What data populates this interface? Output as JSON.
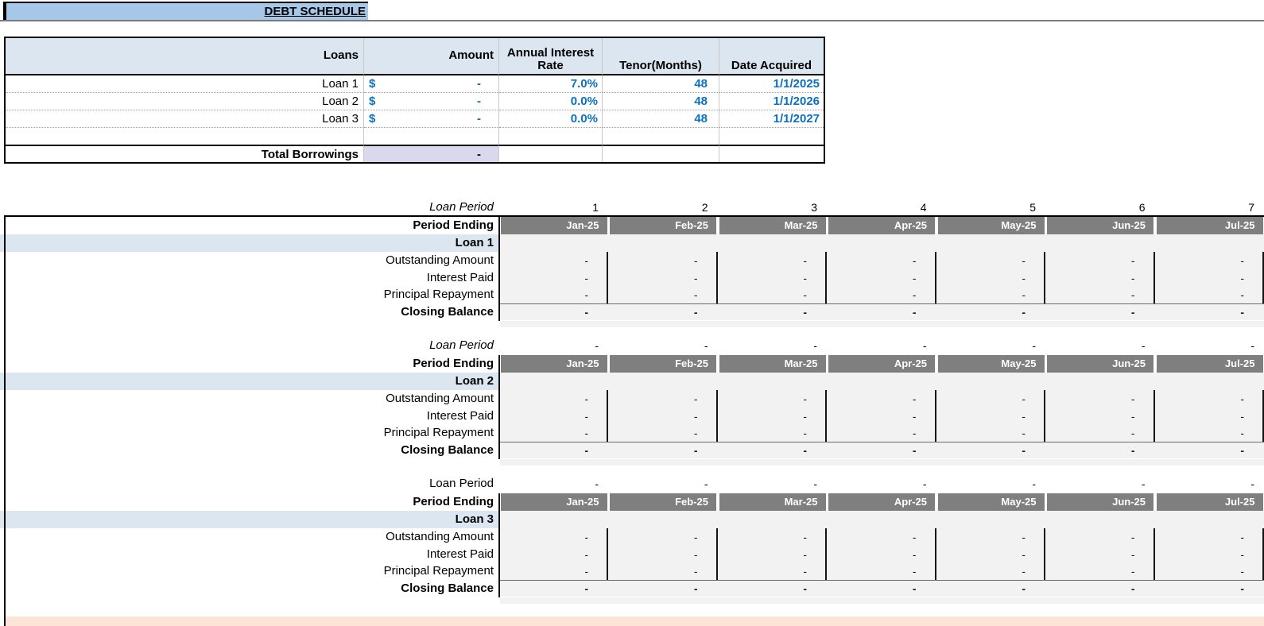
{
  "title": {
    "text": "DEBT SCHEDULE"
  },
  "loans_table": {
    "headers": {
      "loans": "Loans",
      "amount": "Amount",
      "rate_line1": "Annual Interest",
      "rate_line2": "Rate",
      "tenor": "Tenor(Months)",
      "date": "Date Acquired"
    },
    "rows": [
      {
        "name": "Loan 1",
        "currency": "$",
        "amount": "-",
        "rate": "7.0%",
        "tenor": "48",
        "date": "1/1/2025"
      },
      {
        "name": "Loan 2",
        "currency": "$",
        "amount": "-",
        "rate": "0.0%",
        "tenor": "48",
        "date": "1/1/2026"
      },
      {
        "name": "Loan 3",
        "currency": "$",
        "amount": "-",
        "rate": "0.0%",
        "tenor": "48",
        "date": "1/1/2027"
      }
    ],
    "total": {
      "label": "Total Borrowings",
      "value": "-"
    }
  },
  "schedule": {
    "labels": {
      "loan_period": "Loan Period",
      "period_ending": "Period Ending",
      "outstanding": "Outstanding Amount",
      "interest": "Interest Paid",
      "principal": "Principal Repayment",
      "closing": "Closing Balance"
    },
    "months": [
      "Jan-25",
      "Feb-25",
      "Mar-25",
      "Apr-25",
      "May-25",
      "Jun-25",
      "Jul-25"
    ],
    "sections": [
      {
        "loan_label": "Loan 1",
        "period_label_style": "italic",
        "periods": [
          "1",
          "2",
          "3",
          "4",
          "5",
          "6",
          "7"
        ],
        "outstanding": [
          "-",
          "-",
          "-",
          "-",
          "-",
          "-",
          "-"
        ],
        "interest": [
          "-",
          "-",
          "-",
          "-",
          "-",
          "-",
          "-"
        ],
        "principal": [
          "-",
          "-",
          "-",
          "-",
          "-",
          "-",
          "-"
        ],
        "closing": [
          "-",
          "-",
          "-",
          "-",
          "-",
          "-",
          "-"
        ]
      },
      {
        "loan_label": "Loan 2",
        "period_label_style": "italic",
        "periods": [
          "-",
          "-",
          "-",
          "-",
          "-",
          "-",
          "-"
        ],
        "outstanding": [
          "-",
          "-",
          "-",
          "-",
          "-",
          "-",
          "-"
        ],
        "interest": [
          "-",
          "-",
          "-",
          "-",
          "-",
          "-",
          "-"
        ],
        "principal": [
          "-",
          "-",
          "-",
          "-",
          "-",
          "-",
          "-"
        ],
        "closing": [
          "-",
          "-",
          "-",
          "-",
          "-",
          "-",
          "-"
        ]
      },
      {
        "loan_label": "Loan 3",
        "period_label_style": "normal",
        "periods": [
          "-",
          "-",
          "-",
          "-",
          "-",
          "-",
          "-"
        ],
        "outstanding": [
          "-",
          "-",
          "-",
          "-",
          "-",
          "-",
          "-"
        ],
        "interest": [
          "-",
          "-",
          "-",
          "-",
          "-",
          "-",
          "-"
        ],
        "principal": [
          "-",
          "-",
          "-",
          "-",
          "-",
          "-",
          "-"
        ],
        "closing": [
          "-",
          "-",
          "-",
          "-",
          "-",
          "-",
          "-"
        ]
      }
    ]
  },
  "colors": {
    "title_bg": "#a6c7e8",
    "header_blue": "#dce6f1",
    "period_header_gray": "#7f7f7f",
    "data_area_gray": "#f2f2f2",
    "total_cell_lavender": "#d9d9ee",
    "input_text_blue": "#0b70c0",
    "bottom_band_peach": "#fce4d6"
  }
}
